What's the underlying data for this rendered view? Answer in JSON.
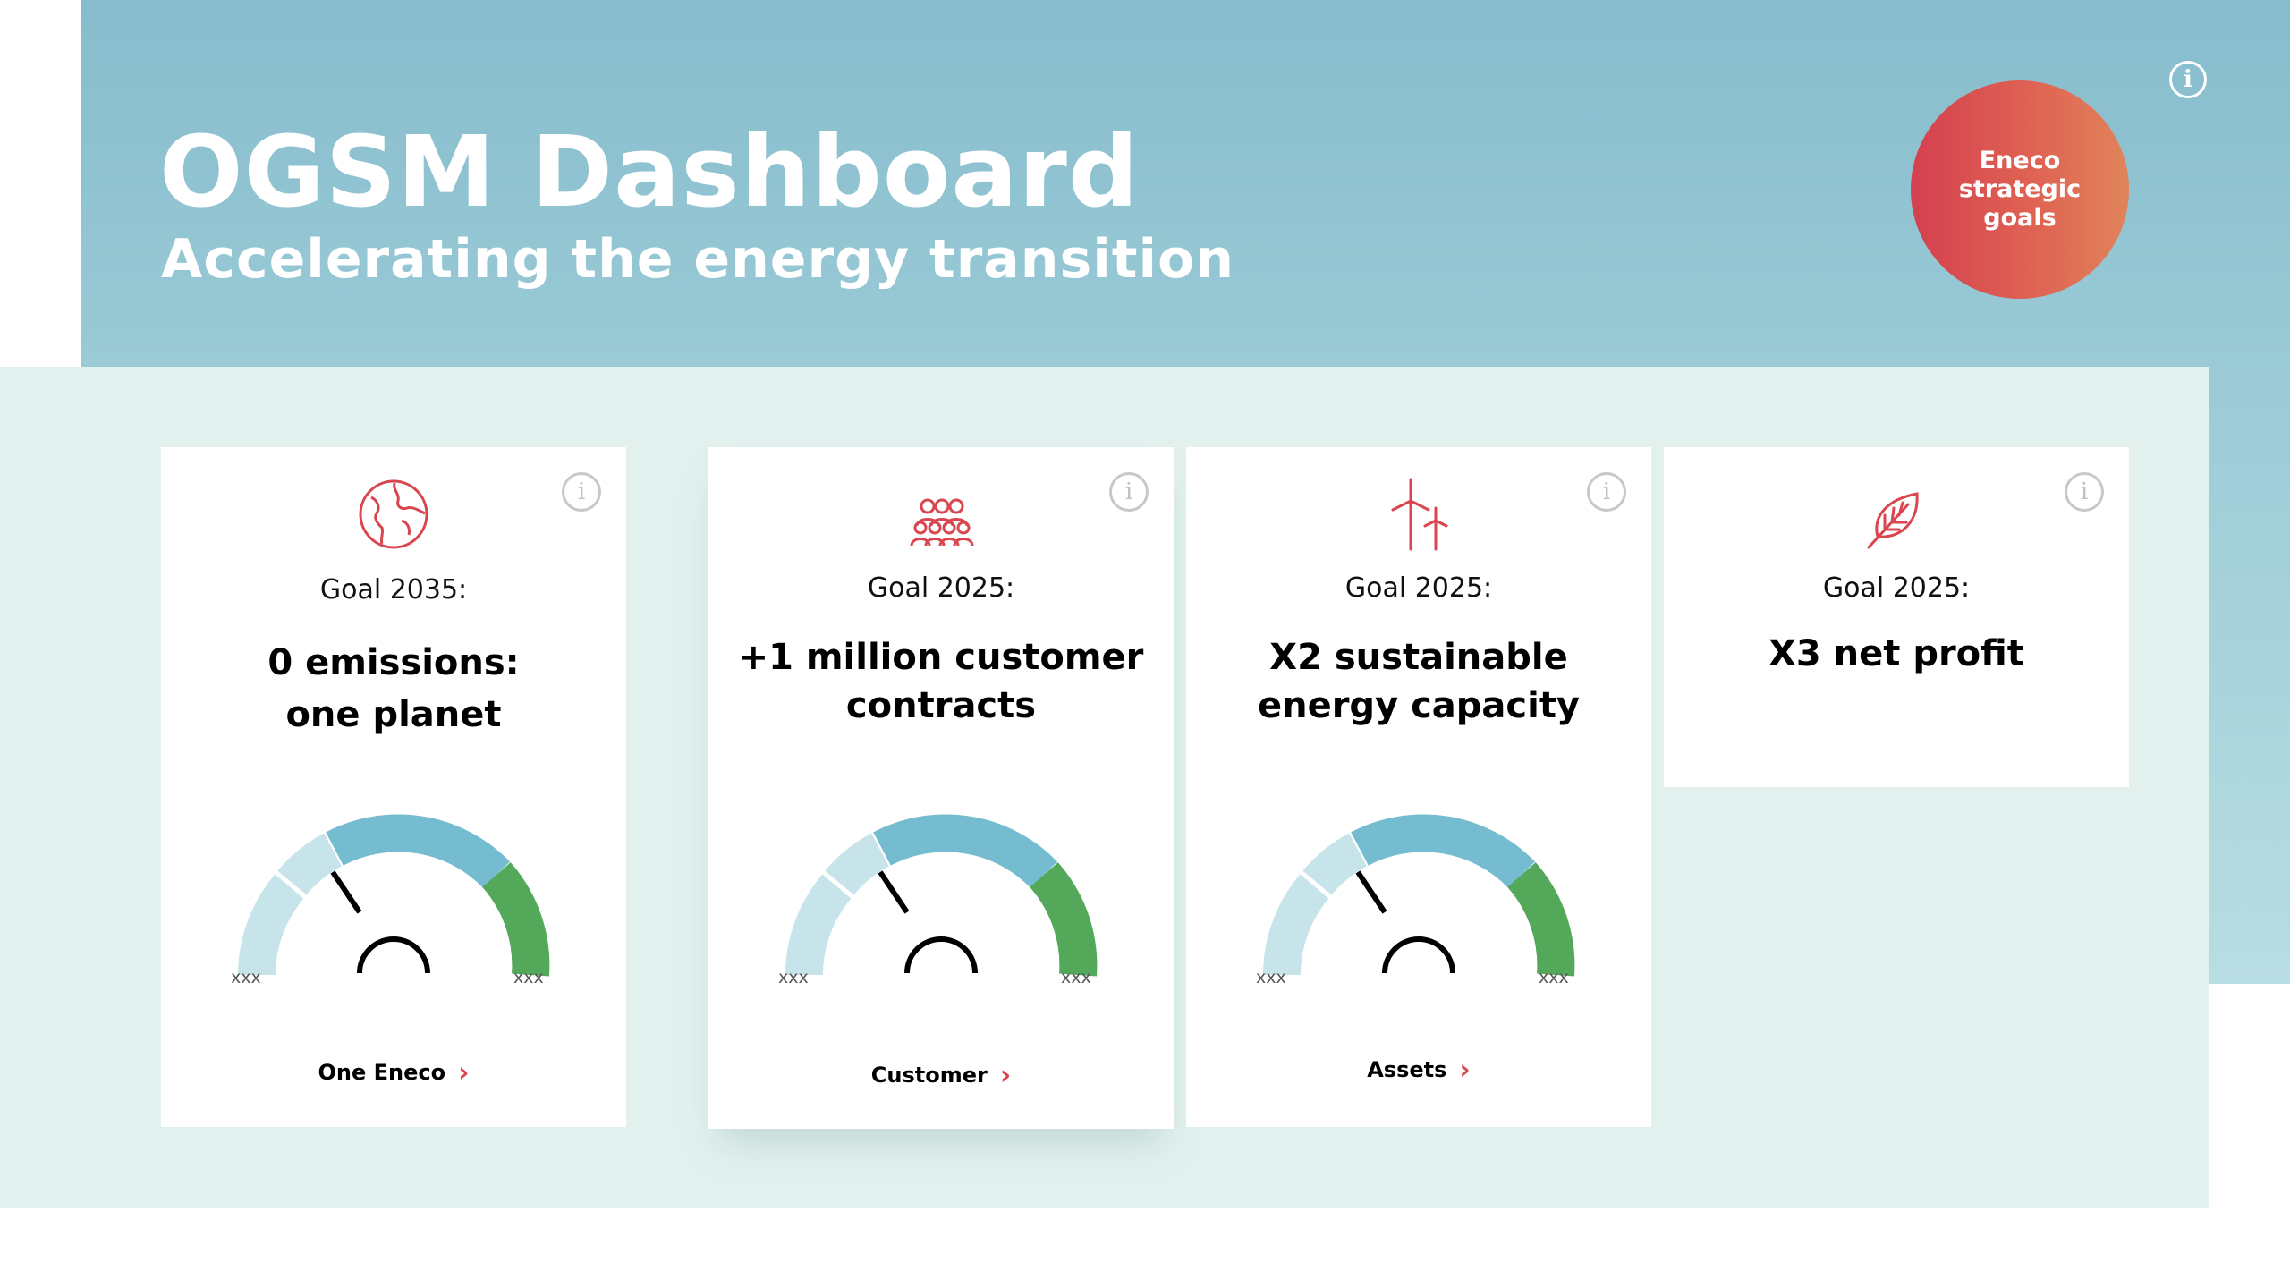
{
  "header": {
    "title": "OGSM Dashboard",
    "subtitle": "Accelerating the energy transition",
    "badge_label": "Eneco strategic goals",
    "info_glyph": "i"
  },
  "colors": {
    "accent_red": "#d9464f",
    "badge_gradient_start": "#d4404f",
    "badge_gradient_end": "#e0845a",
    "gauge_light": "#c6e4ea",
    "gauge_blue": "#75bcd0",
    "gauge_green": "#54a85a",
    "header_blue": "#86bccd",
    "content_bg": "#e2f1ee"
  },
  "cards": [
    {
      "icon": "globe-icon",
      "info_glyph": "i",
      "goal_label": "Goal 2035:",
      "target": "0 emissions: one planet",
      "gauge": {
        "min_label": "xxx",
        "max_label": "xxx"
      },
      "link_label": "One Eneco",
      "link_chevron": "›"
    },
    {
      "icon": "people-icon",
      "info_glyph": "i",
      "goal_label": "Goal 2025:",
      "target": "+1 million customer contracts",
      "gauge": {
        "min_label": "xxx",
        "max_label": "xxx"
      },
      "link_label": "Customer",
      "link_chevron": "›"
    },
    {
      "icon": "wind-turbines-icon",
      "info_glyph": "i",
      "goal_label": "Goal 2025:",
      "target": "X2 sustainable energy capacity",
      "gauge": {
        "min_label": "xxx",
        "max_label": "xxx"
      },
      "link_label": "Assets",
      "link_chevron": "›"
    },
    {
      "icon": "leaf-icon",
      "info_glyph": "i",
      "goal_label": "Goal 2025:",
      "target": "X3 net profit"
    }
  ]
}
